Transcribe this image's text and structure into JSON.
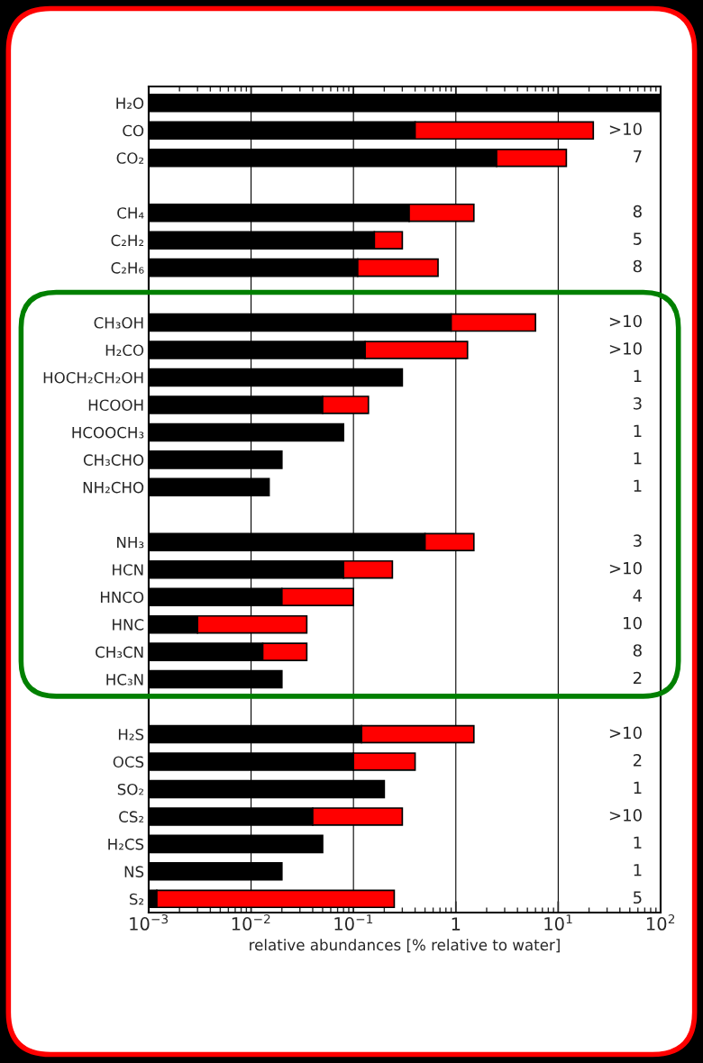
{
  "chart_data": {
    "type": "bar",
    "orientation": "horizontal",
    "stacked": true,
    "log": "x",
    "xlabel": "relative abundances [% relative to water]",
    "categories": [
      "H₂O",
      "CO",
      "CO₂",
      null,
      "CH₄",
      "C₂H₂",
      "C₂H₆",
      null,
      "CH₃OH",
      "H₂CO",
      "HOCH₂CH₂OH",
      "HCOOH",
      "HCOOCH₃",
      "CH₃CHO",
      "NH₂CHO",
      null,
      "NH₃",
      "HCN",
      "HNCO",
      "HNC",
      "CH₃CN",
      "HC₃N",
      null,
      "H₂S",
      "OCS",
      "SO₂",
      "CS₂",
      "H₂CS",
      "NS",
      "S₂"
    ],
    "series": [
      {
        "color": "#000000",
        "values": [
          100,
          0.4,
          2.5,
          null,
          0.35,
          0.16,
          0.11,
          null,
          0.9,
          0.13,
          0.3,
          0.05,
          0.08,
          0.02,
          0.015,
          null,
          0.5,
          0.08,
          0.02,
          0.003,
          0.013,
          0.02,
          null,
          0.12,
          0.1,
          0.2,
          0.04,
          0.05,
          0.02,
          0.0012
        ]
      },
      {
        "color": "#ff0000",
        "values": [
          null,
          21.6,
          9.5,
          null,
          1.15,
          0.14,
          0.56,
          null,
          5.1,
          1.17,
          null,
          0.09,
          null,
          null,
          null,
          null,
          1.0,
          0.16,
          0.08,
          0.032,
          0.022,
          null,
          null,
          1.38,
          0.3,
          null,
          0.26,
          null,
          null,
          0.249
        ]
      }
    ],
    "xlim": [
      0.001,
      100
    ],
    "xticks": [
      {
        "value": 0.001,
        "label": "10$^{−3}$"
      },
      {
        "value": 0.01,
        "label": "10$^{−2}$"
      },
      {
        "value": 0.1,
        "label": "10$^{−1}$"
      },
      1,
      {
        "value": 10,
        "label": "10$^{1}$"
      },
      {
        "value": 100,
        "label": "10$^{2}$"
      }
    ],
    "grid": "x",
    "value_labels": [
      null,
      ">10",
      "7",
      null,
      "8",
      "5",
      "8",
      null,
      ">10",
      ">10",
      "1",
      "3",
      "1",
      "1",
      "1",
      null,
      "3",
      ">10",
      "4",
      "10",
      "8",
      "2",
      null,
      ">10",
      "2",
      "1",
      ">10",
      "1",
      "1",
      "5"
    ]
  }
}
